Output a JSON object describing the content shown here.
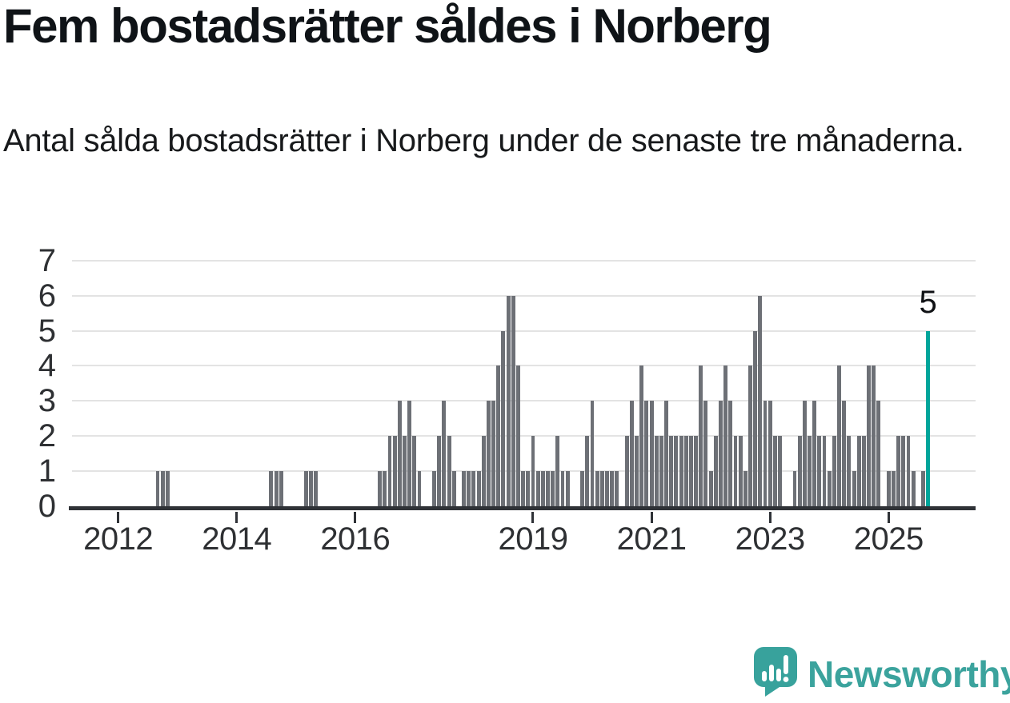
{
  "header": {
    "title": "Fem bostadsrätter såldes i Norberg",
    "subtitle": "Antal sålda bostadsrätter i Norberg under de senaste tre månaderna."
  },
  "chart_data": {
    "type": "bar",
    "title": "Fem bostadsrätter såldes i Norberg",
    "subtitle": "Antal sålda bostadsrätter i Norberg under de senaste tre månaderna.",
    "grid": true,
    "bar_color": "#6d7076",
    "highlight_color": "#00a59b",
    "y_axis": {
      "min": 0,
      "max": 7,
      "tick_labels": [
        "0",
        "1",
        "2",
        "3",
        "4",
        "5",
        "6",
        "7"
      ]
    },
    "x_tick_years": [
      "2012",
      "2014",
      "2016",
      "2019",
      "2021",
      "2023",
      "2025"
    ],
    "values_start": "2011-04",
    "values_monthly": [
      0,
      0,
      0,
      0,
      0,
      0,
      0,
      0,
      0,
      0,
      0,
      0,
      0,
      0,
      0,
      0,
      0,
      1,
      1,
      1,
      0,
      0,
      0,
      0,
      0,
      0,
      0,
      0,
      0,
      0,
      0,
      0,
      0,
      0,
      0,
      0,
      0,
      0,
      0,
      0,
      1,
      1,
      1,
      0,
      0,
      0,
      0,
      1,
      1,
      1,
      0,
      0,
      0,
      0,
      0,
      0,
      0,
      0,
      0,
      0,
      0,
      0,
      1,
      1,
      2,
      2,
      3,
      2,
      3,
      2,
      1,
      0,
      0,
      1,
      2,
      3,
      2,
      1,
      0,
      1,
      1,
      1,
      1,
      2,
      3,
      3,
      4,
      5,
      6,
      6,
      4,
      1,
      1,
      2,
      1,
      1,
      1,
      1,
      2,
      1,
      1,
      0,
      0,
      1,
      2,
      3,
      1,
      1,
      1,
      1,
      1,
      0,
      2,
      3,
      2,
      4,
      3,
      3,
      2,
      2,
      3,
      2,
      2,
      2,
      2,
      2,
      2,
      4,
      3,
      1,
      2,
      3,
      4,
      3,
      2,
      2,
      1,
      4,
      5,
      6,
      3,
      3,
      2,
      2,
      0,
      0,
      1,
      2,
      3,
      2,
      3,
      2,
      2,
      1,
      2,
      4,
      3,
      2,
      1,
      2,
      2,
      4,
      4,
      3,
      0,
      1,
      1,
      2,
      2,
      2,
      1,
      0,
      1,
      5
    ],
    "last_point": {
      "date": "2025-09",
      "value": 5,
      "label": "5",
      "highlighted": true
    }
  },
  "annotation": {
    "label": "5"
  },
  "footer": {
    "brand": "Newsworthy",
    "logo_icon": "newsworthy-speech-bubble-chart-icon"
  },
  "colors": {
    "bar": "#6d7076",
    "highlight": "#00a59b",
    "brand_teal": "#3ba39d",
    "axis": "#2f3237",
    "gridline": "#e3e3e3",
    "text": "#0f1317"
  }
}
